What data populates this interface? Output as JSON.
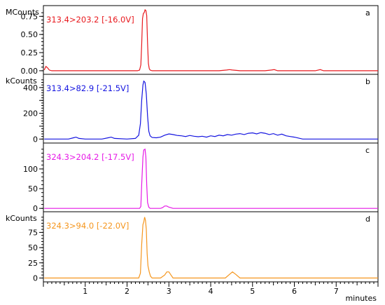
{
  "chart_data": {
    "type": "line",
    "x_axis": {
      "label": "minutes",
      "range": [
        0,
        8.0
      ],
      "ticks": [
        1,
        2,
        3,
        4,
        5,
        6,
        7
      ],
      "minor_step": 0.1
    },
    "panels": [
      {
        "letter": "a",
        "unit": "MCounts",
        "trace_label": "313.4>203.2 [-16.0V]",
        "color": "#e8191e",
        "ylim": [
          -0.03,
          0.84
        ],
        "yticks": [
          0.0,
          0.25,
          0.5,
          0.75
        ],
        "ytick_labels": [
          "0.00",
          "0.25",
          "0.50",
          "0.75"
        ],
        "ytick_minor_step": 0.05,
        "x": [
          0.02,
          0.06,
          0.1,
          0.14,
          0.2,
          0.6,
          1.0,
          1.4,
          1.8,
          2.1,
          2.25,
          2.3,
          2.33,
          2.35,
          2.37,
          2.39,
          2.41,
          2.43,
          2.45,
          2.47,
          2.49,
          2.51,
          2.53,
          2.55,
          2.6,
          2.8,
          3.2,
          4.2,
          4.38,
          4.45,
          4.52,
          4.7,
          5.3,
          5.45,
          5.52,
          5.6,
          6.0,
          6.5,
          6.62,
          6.7,
          7.0,
          7.5,
          8.0
        ],
        "y": [
          0.01,
          0.06,
          0.04,
          0.01,
          0.0,
          0.0,
          0.0,
          0.0,
          0.0,
          0.0,
          0.0,
          0.01,
          0.08,
          0.36,
          0.72,
          0.79,
          0.8,
          0.84,
          0.83,
          0.76,
          0.38,
          0.1,
          0.03,
          0.01,
          0.0,
          0.0,
          0.0,
          0.0,
          0.01,
          0.015,
          0.01,
          0.0,
          0.0,
          0.01,
          0.015,
          0.0,
          0.0,
          0.0,
          0.015,
          0.0,
          0.0,
          0.0,
          0.0
        ]
      },
      {
        "letter": "b",
        "unit": "kCounts",
        "trace_label": "313.4>82.9 [-21.5V]",
        "color": "#1414e0",
        "ylim": [
          -20,
          470
        ],
        "yticks": [
          0,
          100,
          200,
          300,
          400
        ],
        "ytick_labels": [
          "0",
          "200",
          "400"
        ],
        "ytick_labeled_values": [
          0,
          200,
          400
        ],
        "ytick_minor_step": 20,
        "x": [
          0.02,
          0.3,
          0.6,
          0.72,
          0.78,
          0.85,
          1.0,
          1.4,
          1.55,
          1.62,
          1.7,
          2.0,
          2.2,
          2.28,
          2.32,
          2.35,
          2.38,
          2.4,
          2.43,
          2.46,
          2.49,
          2.52,
          2.55,
          2.6,
          2.7,
          2.8,
          2.9,
          3.0,
          3.1,
          3.2,
          3.3,
          3.4,
          3.5,
          3.6,
          3.7,
          3.8,
          3.9,
          4.0,
          4.1,
          4.2,
          4.3,
          4.4,
          4.5,
          4.6,
          4.7,
          4.8,
          4.9,
          5.0,
          5.1,
          5.2,
          5.3,
          5.4,
          5.5,
          5.6,
          5.7,
          5.8,
          5.9,
          6.0,
          6.1,
          6.2,
          6.5,
          7.0,
          7.5,
          8.0
        ],
        "y": [
          0,
          0,
          0,
          10,
          15,
          5,
          0,
          0,
          10,
          15,
          5,
          0,
          5,
          30,
          120,
          300,
          420,
          450,
          440,
          350,
          180,
          60,
          25,
          12,
          10,
          15,
          30,
          40,
          35,
          28,
          25,
          20,
          28,
          22,
          18,
          22,
          15,
          25,
          20,
          30,
          25,
          35,
          30,
          38,
          42,
          35,
          45,
          48,
          40,
          50,
          45,
          35,
          42,
          30,
          38,
          25,
          20,
          15,
          8,
          0,
          0,
          0,
          0,
          0
        ]
      },
      {
        "letter": "c",
        "unit": "",
        "trace_label": "324.3>204.2 [-17.5V]",
        "color": "#e619e6",
        "ylim": [
          -5,
          155
        ],
        "yticks": [
          0,
          50,
          100
        ],
        "ytick_labels": [
          "0",
          "50",
          "100"
        ],
        "ytick_minor_step": 10,
        "x": [
          0.02,
          0.5,
          1.0,
          1.5,
          2.0,
          2.25,
          2.3,
          2.33,
          2.35,
          2.38,
          2.4,
          2.43,
          2.45,
          2.47,
          2.49,
          2.52,
          2.55,
          2.6,
          2.8,
          2.85,
          2.9,
          2.95,
          3.0,
          3.1,
          3.5,
          4.0,
          5.0,
          6.0,
          7.0,
          8.0
        ],
        "y": [
          0,
          0,
          0,
          0,
          0,
          0,
          0,
          5,
          60,
          130,
          148,
          150,
          130,
          60,
          15,
          3,
          0,
          0,
          0,
          2,
          6,
          6,
          3,
          0,
          0,
          0,
          0,
          0,
          0,
          0
        ],
        "panel_unit_shared": true
      },
      {
        "letter": "d",
        "unit": "kCounts",
        "trace_label": "324.3>94.0 [-22.0V]",
        "color": "#f5961e",
        "ylim": [
          -4,
          102
        ],
        "yticks": [
          0,
          25,
          50,
          75
        ],
        "ytick_labels": [
          "0",
          "25",
          "50",
          "75"
        ],
        "ytick_minor_step": 5,
        "x": [
          0.02,
          0.5,
          1.0,
          1.5,
          2.0,
          2.2,
          2.28,
          2.32,
          2.35,
          2.38,
          2.4,
          2.42,
          2.44,
          2.46,
          2.48,
          2.5,
          2.53,
          2.56,
          2.6,
          2.8,
          2.9,
          2.95,
          3.0,
          3.05,
          3.1,
          3.3,
          3.8,
          4.35,
          4.45,
          4.52,
          4.6,
          4.7,
          5.0,
          5.5,
          6.0,
          6.5,
          7.0,
          7.5,
          8.0
        ],
        "y": [
          0,
          0,
          0,
          0,
          0,
          0,
          0,
          8,
          55,
          88,
          92,
          100,
          95,
          80,
          40,
          20,
          10,
          3,
          0,
          0,
          5,
          10,
          10,
          5,
          0,
          0,
          0,
          0,
          6,
          10,
          6,
          0,
          0,
          0,
          0,
          0,
          0,
          0,
          0
        ]
      }
    ]
  }
}
